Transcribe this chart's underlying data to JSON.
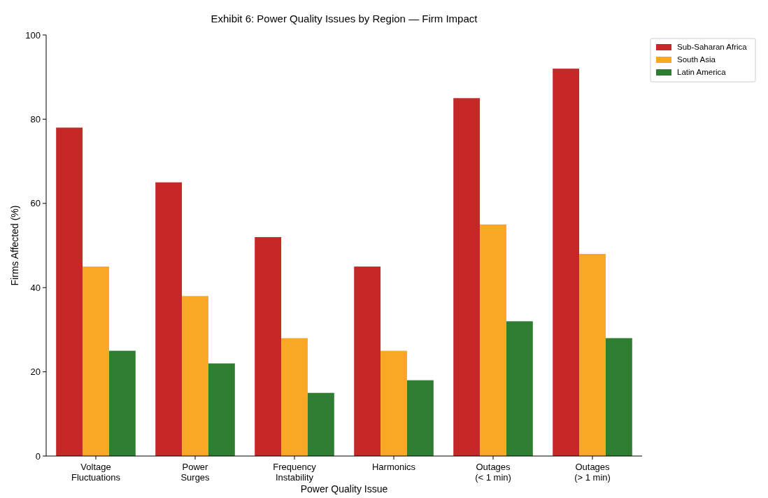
{
  "chart_data": {
    "type": "bar",
    "title": "Exhibit 6: Power Quality Issues by Region — Firm Impact",
    "xlabel": "Power Quality Issue",
    "ylabel": "Firms Affected (%)",
    "categories": [
      "Voltage\nFluctuations",
      "Power\nSurges",
      "Frequency\nInstability",
      "Harmonics",
      "Outages\n(< 1 min)",
      "Outages\n(> 1 min)"
    ],
    "series": [
      {
        "name": "Sub-Saharan Africa",
        "color": "#c62828",
        "values": [
          78,
          65,
          52,
          45,
          85,
          92
        ]
      },
      {
        "name": "South Asia",
        "color": "#f9a825",
        "values": [
          45,
          38,
          28,
          25,
          55,
          48
        ]
      },
      {
        "name": "Latin America",
        "color": "#2e7d32",
        "values": [
          25,
          22,
          15,
          18,
          32,
          28
        ]
      }
    ],
    "ylim": [
      0,
      100
    ],
    "yticks": [
      0,
      20,
      40,
      60,
      80,
      100
    ],
    "legend": "top right"
  }
}
